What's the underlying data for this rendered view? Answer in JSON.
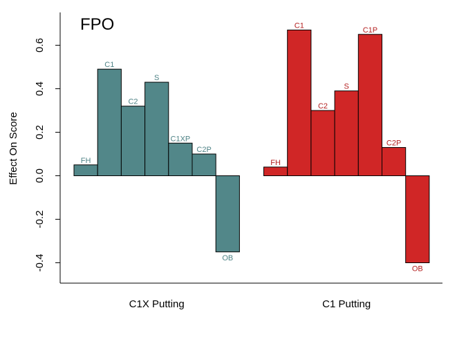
{
  "chart_data": {
    "type": "bar",
    "title": "FPO",
    "ylabel": "Effect On Score",
    "xlabel": "",
    "ylim": [
      -0.5,
      0.75
    ],
    "yticks": [
      -0.4,
      -0.2,
      0.0,
      0.2,
      0.4,
      0.6
    ],
    "ytick_labels": [
      "-0.4",
      "-0.2",
      "0.0",
      "0.2",
      "0.4",
      "0.6"
    ],
    "grid": false,
    "groups": [
      {
        "name": "C1X Putting",
        "color": "#528789",
        "label_color": "#4f8386",
        "categories": [
          "FH",
          "C1",
          "C2",
          "S",
          "C1XP",
          "C2P",
          "OB"
        ],
        "values": [
          0.05,
          0.49,
          0.32,
          0.43,
          0.15,
          0.1,
          -0.35
        ]
      },
      {
        "name": "C1 Putting",
        "color": "#d02626",
        "label_color": "#b42020",
        "categories": [
          "FH",
          "C1",
          "C2",
          "S",
          "C1P",
          "C2P",
          "OB"
        ],
        "values": [
          0.04,
          0.67,
          0.3,
          0.39,
          0.65,
          0.13,
          -0.4
        ]
      }
    ]
  }
}
